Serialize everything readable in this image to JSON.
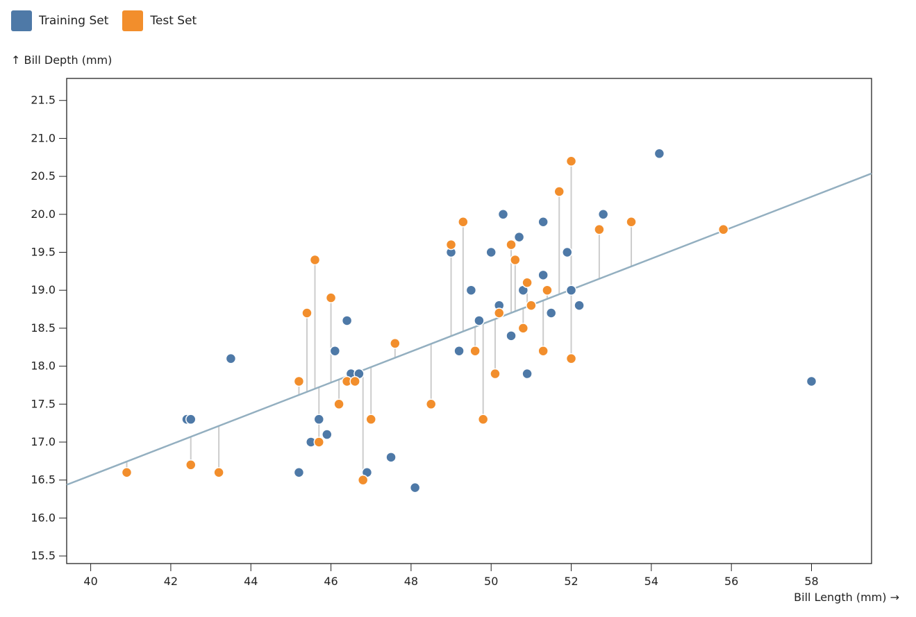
{
  "chart_data": {
    "type": "scatter",
    "xlabel": "Bill Length (mm) →",
    "ylabel": "↑ Bill Depth (mm)",
    "xlim": [
      39.4,
      59.5
    ],
    "ylim": [
      15.4,
      21.79
    ],
    "xticks": [
      40,
      42,
      44,
      46,
      48,
      50,
      52,
      54,
      56,
      58
    ],
    "yticks": [
      15.5,
      16.0,
      16.5,
      17.0,
      17.5,
      18.0,
      18.5,
      19.0,
      19.5,
      20.0,
      20.5,
      21.0,
      21.5
    ],
    "grid": false,
    "legend": "top-left",
    "regression_line": {
      "slope": 0.204,
      "intercept_at_40": 16.56,
      "color": "#93afc0"
    },
    "residual_lines": "test set points to regression line",
    "series": [
      {
        "name": "Training Set",
        "color": "#4e79a7",
        "points": [
          [
            42.4,
            17.3
          ],
          [
            42.5,
            17.3
          ],
          [
            43.5,
            18.1
          ],
          [
            45.2,
            16.6
          ],
          [
            45.5,
            17.0
          ],
          [
            45.7,
            17.3
          ],
          [
            45.9,
            17.1
          ],
          [
            46.1,
            18.2
          ],
          [
            46.4,
            18.6
          ],
          [
            46.5,
            17.9
          ],
          [
            46.7,
            17.9
          ],
          [
            46.9,
            16.6
          ],
          [
            47.5,
            16.8
          ],
          [
            48.1,
            16.4
          ],
          [
            49.0,
            19.5
          ],
          [
            49.2,
            18.2
          ],
          [
            49.5,
            19.0
          ],
          [
            49.7,
            18.6
          ],
          [
            50.0,
            19.5
          ],
          [
            50.2,
            18.8
          ],
          [
            50.3,
            20.0
          ],
          [
            50.5,
            18.4
          ],
          [
            50.7,
            19.7
          ],
          [
            50.8,
            19.0
          ],
          [
            50.9,
            17.9
          ],
          [
            51.3,
            19.2
          ],
          [
            51.3,
            19.9
          ],
          [
            51.5,
            18.7
          ],
          [
            51.9,
            19.5
          ],
          [
            52.0,
            19.0
          ],
          [
            52.2,
            18.8
          ],
          [
            52.8,
            20.0
          ],
          [
            54.2,
            20.8
          ],
          [
            58.0,
            17.8
          ]
        ]
      },
      {
        "name": "Test Set",
        "color": "#f28e2c",
        "points": [
          [
            40.9,
            16.6
          ],
          [
            42.5,
            16.7
          ],
          [
            43.2,
            16.6
          ],
          [
            45.2,
            17.8
          ],
          [
            45.4,
            18.7
          ],
          [
            45.6,
            19.4
          ],
          [
            45.7,
            17.0
          ],
          [
            46.0,
            18.9
          ],
          [
            46.2,
            17.5
          ],
          [
            46.4,
            17.8
          ],
          [
            46.6,
            17.8
          ],
          [
            46.8,
            16.5
          ],
          [
            47.0,
            17.3
          ],
          [
            47.6,
            18.3
          ],
          [
            48.5,
            17.5
          ],
          [
            49.0,
            19.6
          ],
          [
            49.3,
            19.9
          ],
          [
            49.6,
            18.2
          ],
          [
            49.8,
            17.3
          ],
          [
            50.1,
            17.9
          ],
          [
            50.2,
            18.7
          ],
          [
            50.5,
            19.6
          ],
          [
            50.6,
            19.4
          ],
          [
            50.8,
            18.5
          ],
          [
            50.9,
            19.1
          ],
          [
            51.0,
            18.8
          ],
          [
            51.3,
            18.2
          ],
          [
            51.4,
            19.0
          ],
          [
            51.7,
            20.3
          ],
          [
            52.0,
            20.7
          ],
          [
            52.0,
            18.1
          ],
          [
            52.7,
            19.8
          ],
          [
            53.5,
            19.9
          ],
          [
            55.8,
            19.8
          ]
        ]
      }
    ]
  }
}
